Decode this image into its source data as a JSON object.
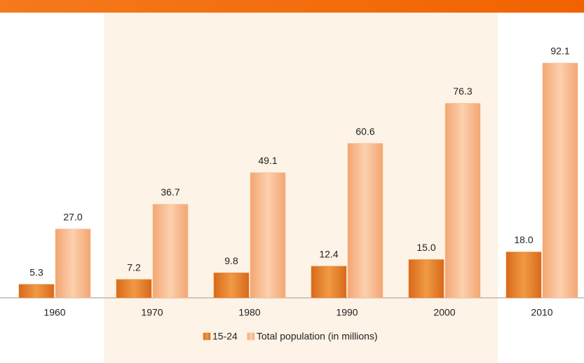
{
  "chart_data": {
    "type": "bar",
    "categories": [
      "1960",
      "1970",
      "1980",
      "1990",
      "2000",
      "2010"
    ],
    "series": [
      {
        "name": "15-24",
        "color": "#e8832a",
        "values": [
          5.3,
          7.2,
          9.8,
          12.4,
          15.0,
          18.0
        ],
        "value_labels": [
          "5.3",
          "7.2",
          "9.8",
          "12.4",
          "15.0",
          "18.0"
        ]
      },
      {
        "name": "Total population (in millions)",
        "color": "#f9b98c",
        "values": [
          27.0,
          36.7,
          49.1,
          60.6,
          76.3,
          92.1
        ],
        "value_labels": [
          "27.0",
          "36.7",
          "49.1",
          "60.6",
          "76.3",
          "92.1"
        ]
      }
    ]
  }
}
